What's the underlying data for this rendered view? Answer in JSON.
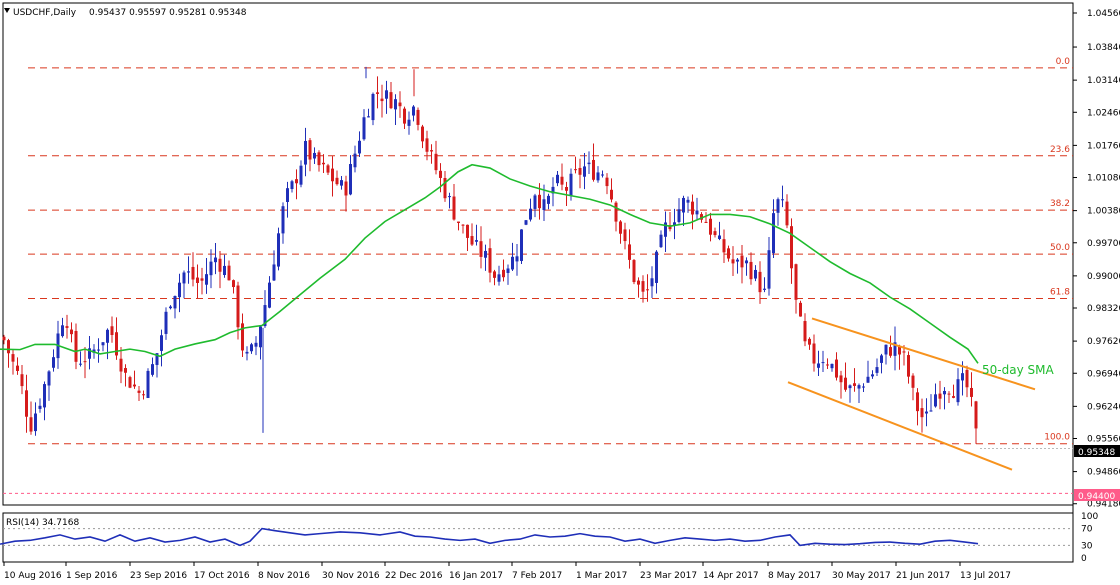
{
  "chart_data": {
    "type": "candlestick",
    "header": {
      "symbol": "USDCHF,Daily",
      "ohlc": "0.95437 0.95597 0.95281 0.95348"
    },
    "price_axis": {
      "range": [
        0.94,
        1.047
      ],
      "ticks": [
        "1.04560",
        "1.03840",
        "1.03140",
        "1.02460",
        "1.01760",
        "1.01080",
        "1.00380",
        "0.99700",
        "0.99000",
        "0.98320",
        "0.97620",
        "0.96940",
        "0.96240",
        "0.95560",
        "0.94860",
        "0.94180"
      ],
      "current_price": "0.95348",
      "alert_price": "0.94400"
    },
    "x_axis": {
      "labels": [
        "10 Aug 2016",
        "1 Sep 2016",
        "23 Sep 2016",
        "17 Oct 2016",
        "8 Nov 2016",
        "30 Nov 2016",
        "22 Dec 2016",
        "16 Jan 2017",
        "7 Feb 2017",
        "1 Mar 2017",
        "23 Mar 2017",
        "14 Apr 2017",
        "8 May 2017",
        "30 May 2017",
        "21 Jun 2017",
        "13 Jul 2017"
      ]
    },
    "fibonacci": [
      {
        "label": "0.0",
        "price": 1.034
      },
      {
        "label": "23.6",
        "price": 1.0154
      },
      {
        "label": "38.2",
        "price": 1.0039
      },
      {
        "label": "50.0",
        "price": 0.9946
      },
      {
        "label": "61.8",
        "price": 0.9852
      },
      {
        "label": "100.0",
        "price": 0.9545
      }
    ],
    "sma_label": "50-day SMA",
    "sma_50": [
      [
        0,
        0.9745
      ],
      [
        20,
        0.9744
      ],
      [
        35,
        0.9755
      ],
      [
        55,
        0.9755
      ],
      [
        75,
        0.974
      ],
      [
        85,
        0.9745
      ],
      [
        100,
        0.9735
      ],
      [
        115,
        0.974
      ],
      [
        130,
        0.9745
      ],
      [
        145,
        0.974
      ],
      [
        160,
        0.973
      ],
      [
        175,
        0.9745
      ],
      [
        195,
        0.9756
      ],
      [
        215,
        0.9765
      ],
      [
        230,
        0.978
      ],
      [
        245,
        0.979
      ],
      [
        262,
        0.9795
      ],
      [
        280,
        0.9825
      ],
      [
        300,
        0.986
      ],
      [
        320,
        0.9895
      ],
      [
        345,
        0.9935
      ],
      [
        365,
        0.998
      ],
      [
        385,
        1.0015
      ],
      [
        405,
        1.004
      ],
      [
        425,
        1.0065
      ],
      [
        440,
        1.0088
      ],
      [
        458,
        1.012
      ],
      [
        472,
        1.0135
      ],
      [
        490,
        1.0128
      ],
      [
        510,
        1.0105
      ],
      [
        530,
        1.009
      ],
      [
        550,
        1.0078
      ],
      [
        570,
        1.007
      ],
      [
        590,
        1.0062
      ],
      [
        610,
        1.005
      ],
      [
        630,
        1.003
      ],
      [
        650,
        1.0012
      ],
      [
        670,
        1.0005
      ],
      [
        690,
        1.0012
      ],
      [
        710,
        1.003
      ],
      [
        730,
        1.003
      ],
      [
        750,
        1.0025
      ],
      [
        770,
        1.001
      ],
      [
        790,
        0.999
      ],
      [
        810,
        0.996
      ],
      [
        830,
        0.993
      ],
      [
        850,
        0.9905
      ],
      [
        870,
        0.9885
      ],
      [
        890,
        0.9855
      ],
      [
        910,
        0.983
      ],
      [
        930,
        0.98
      ],
      [
        950,
        0.977
      ],
      [
        968,
        0.9745
      ],
      [
        978,
        0.9715
      ]
    ],
    "channel": [
      {
        "from": [
          812,
          0.981
        ],
        "to": [
          1035,
          0.966
        ]
      },
      {
        "from": [
          788,
          0.9675
        ],
        "to": [
          1012,
          0.949
        ]
      }
    ],
    "rsi": {
      "label": "RSI(14) 34.7168",
      "axis_ticks": [
        "100",
        "70",
        "30",
        "0"
      ],
      "values": [
        [
          0,
          33
        ],
        [
          15,
          40
        ],
        [
          30,
          42
        ],
        [
          45,
          48
        ],
        [
          60,
          55
        ],
        [
          75,
          45
        ],
        [
          90,
          50
        ],
        [
          105,
          40
        ],
        [
          120,
          55
        ],
        [
          135,
          40
        ],
        [
          150,
          48
        ],
        [
          165,
          38
        ],
        [
          180,
          42
        ],
        [
          195,
          50
        ],
        [
          210,
          38
        ],
        [
          225,
          45
        ],
        [
          240,
          30
        ],
        [
          250,
          40
        ],
        [
          262,
          70
        ],
        [
          275,
          65
        ],
        [
          290,
          60
        ],
        [
          305,
          55
        ],
        [
          320,
          58
        ],
        [
          340,
          62
        ],
        [
          360,
          60
        ],
        [
          380,
          55
        ],
        [
          400,
          62
        ],
        [
          415,
          52
        ],
        [
          430,
          50
        ],
        [
          445,
          45
        ],
        [
          460,
          42
        ],
        [
          475,
          45
        ],
        [
          490,
          35
        ],
        [
          505,
          42
        ],
        [
          520,
          45
        ],
        [
          535,
          55
        ],
        [
          550,
          50
        ],
        [
          565,
          52
        ],
        [
          580,
          58
        ],
        [
          595,
          52
        ],
        [
          610,
          50
        ],
        [
          625,
          40
        ],
        [
          640,
          45
        ],
        [
          655,
          35
        ],
        [
          670,
          42
        ],
        [
          685,
          48
        ],
        [
          700,
          45
        ],
        [
          715,
          42
        ],
        [
          730,
          45
        ],
        [
          745,
          40
        ],
        [
          760,
          42
        ],
        [
          775,
          50
        ],
        [
          790,
          55
        ],
        [
          800,
          30
        ],
        [
          815,
          35
        ],
        [
          830,
          33
        ],
        [
          845,
          32
        ],
        [
          860,
          34
        ],
        [
          875,
          37
        ],
        [
          890,
          38
        ],
        [
          905,
          35
        ],
        [
          920,
          33
        ],
        [
          935,
          40
        ],
        [
          950,
          42
        ],
        [
          965,
          38
        ],
        [
          978,
          34
        ]
      ]
    }
  }
}
